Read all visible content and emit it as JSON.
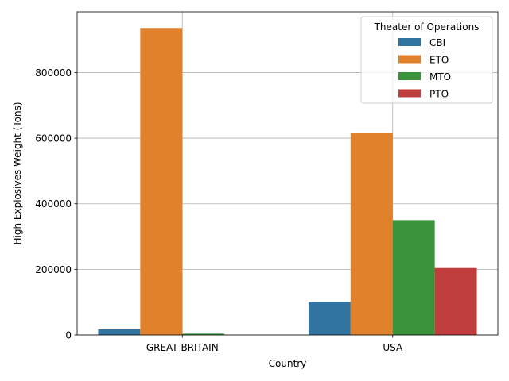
{
  "chart_data": {
    "type": "bar",
    "title": "",
    "xlabel": "Country",
    "ylabel": "High Explosives Weight (Tons)",
    "categories": [
      "GREAT BRITAIN",
      "USA"
    ],
    "ylim": [
      0,
      985000
    ],
    "yticks": [
      0,
      200000,
      400000,
      600000,
      800000
    ],
    "ytick_labels": [
      "0",
      "200000",
      "400000",
      "600000",
      "800000"
    ],
    "grid": true,
    "legend": {
      "title": "Theater of Operations",
      "placement": "top-right"
    },
    "series": [
      {
        "name": "CBI",
        "color": "#3274a1",
        "values": [
          17000,
          101000
        ]
      },
      {
        "name": "ETO",
        "color": "#e1812c",
        "values": [
          936000,
          615000
        ]
      },
      {
        "name": "MTO",
        "color": "#3a923a",
        "values": [
          4000,
          350000
        ]
      },
      {
        "name": "PTO",
        "color": "#c03d3e",
        "values": [
          0,
          204000
        ]
      }
    ]
  }
}
